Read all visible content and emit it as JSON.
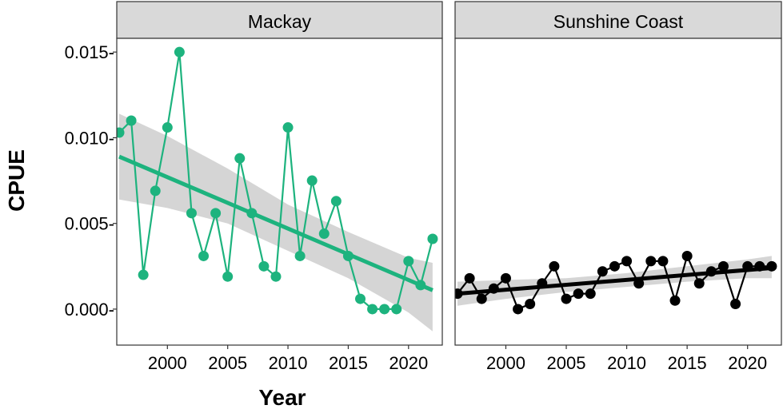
{
  "chart_data": {
    "type": "line",
    "xlabel": "Year",
    "ylabel": "CPUE",
    "xlim": [
      1995.8,
      2022.8
    ],
    "ylim": [
      -0.0021,
      0.0158
    ],
    "x_ticks": [
      2000,
      2005,
      2010,
      2015,
      2020
    ],
    "y_ticks": [
      0.0,
      0.005,
      0.01,
      0.015
    ],
    "y_tick_labels": [
      "0.000-",
      "0.005-",
      "0.010-",
      "0.015-"
    ],
    "grid": false,
    "legend": "none",
    "panels": [
      {
        "name": "Mackay",
        "color": "#1db37e",
        "x": [
          1996,
          1997,
          1998,
          1999,
          2000,
          2001,
          2002,
          2003,
          2004,
          2005,
          2006,
          2007,
          2008,
          2009,
          2010,
          2011,
          2012,
          2013,
          2014,
          2015,
          2016,
          2017,
          2018,
          2019,
          2020,
          2021,
          2022
        ],
        "y": [
          0.0103,
          0.011,
          0.002,
          0.0069,
          0.0106,
          0.015,
          0.0056,
          0.0031,
          0.0056,
          0.0019,
          0.0088,
          0.0056,
          0.0025,
          0.0019,
          0.0106,
          0.0031,
          0.0075,
          0.0044,
          0.0063,
          0.0031,
          0.0006,
          0.0,
          0.0,
          0.0,
          0.0028,
          0.0014,
          0.0041
        ],
        "trend": {
          "x": [
            1996,
            2022
          ],
          "y": [
            0.0089,
            0.0011
          ]
        },
        "band": {
          "x": [
            1996,
            2000,
            2005,
            2010,
            2015,
            2020,
            2022
          ],
          "lower": [
            0.0064,
            0.0059,
            0.005,
            0.0034,
            0.0018,
            -0.0002,
            -0.0013
          ],
          "upper": [
            0.0114,
            0.0101,
            0.0082,
            0.0061,
            0.0045,
            0.003,
            0.0027
          ]
        }
      },
      {
        "name": "Sunshine Coast",
        "color": "#000000",
        "x": [
          1996,
          1997,
          1998,
          1999,
          2000,
          2001,
          2002,
          2003,
          2004,
          2005,
          2006,
          2007,
          2008,
          2009,
          2010,
          2011,
          2012,
          2013,
          2014,
          2015,
          2016,
          2017,
          2018,
          2019,
          2020,
          2021,
          2022
        ],
        "y": [
          0.0009,
          0.0018,
          0.0006,
          0.0012,
          0.0018,
          0.0,
          0.0003,
          0.0015,
          0.0025,
          0.0006,
          0.0009,
          0.0009,
          0.0022,
          0.0025,
          0.0028,
          0.0015,
          0.0028,
          0.0028,
          0.0005,
          0.0031,
          0.0015,
          0.0022,
          0.0025,
          0.0003,
          0.0025,
          0.0025,
          0.0025
        ],
        "trend": {
          "x": [
            1996,
            2022
          ],
          "y": [
            0.0009,
            0.0024
          ]
        },
        "band": {
          "x": [
            1996,
            2000,
            2005,
            2010,
            2015,
            2020,
            2022
          ],
          "lower": [
            0.0002,
            0.0006,
            0.001,
            0.0013,
            0.0016,
            0.0018,
            0.0018
          ],
          "upper": [
            0.0016,
            0.0017,
            0.0018,
            0.0021,
            0.0025,
            0.0029,
            0.0031
          ]
        }
      }
    ]
  }
}
